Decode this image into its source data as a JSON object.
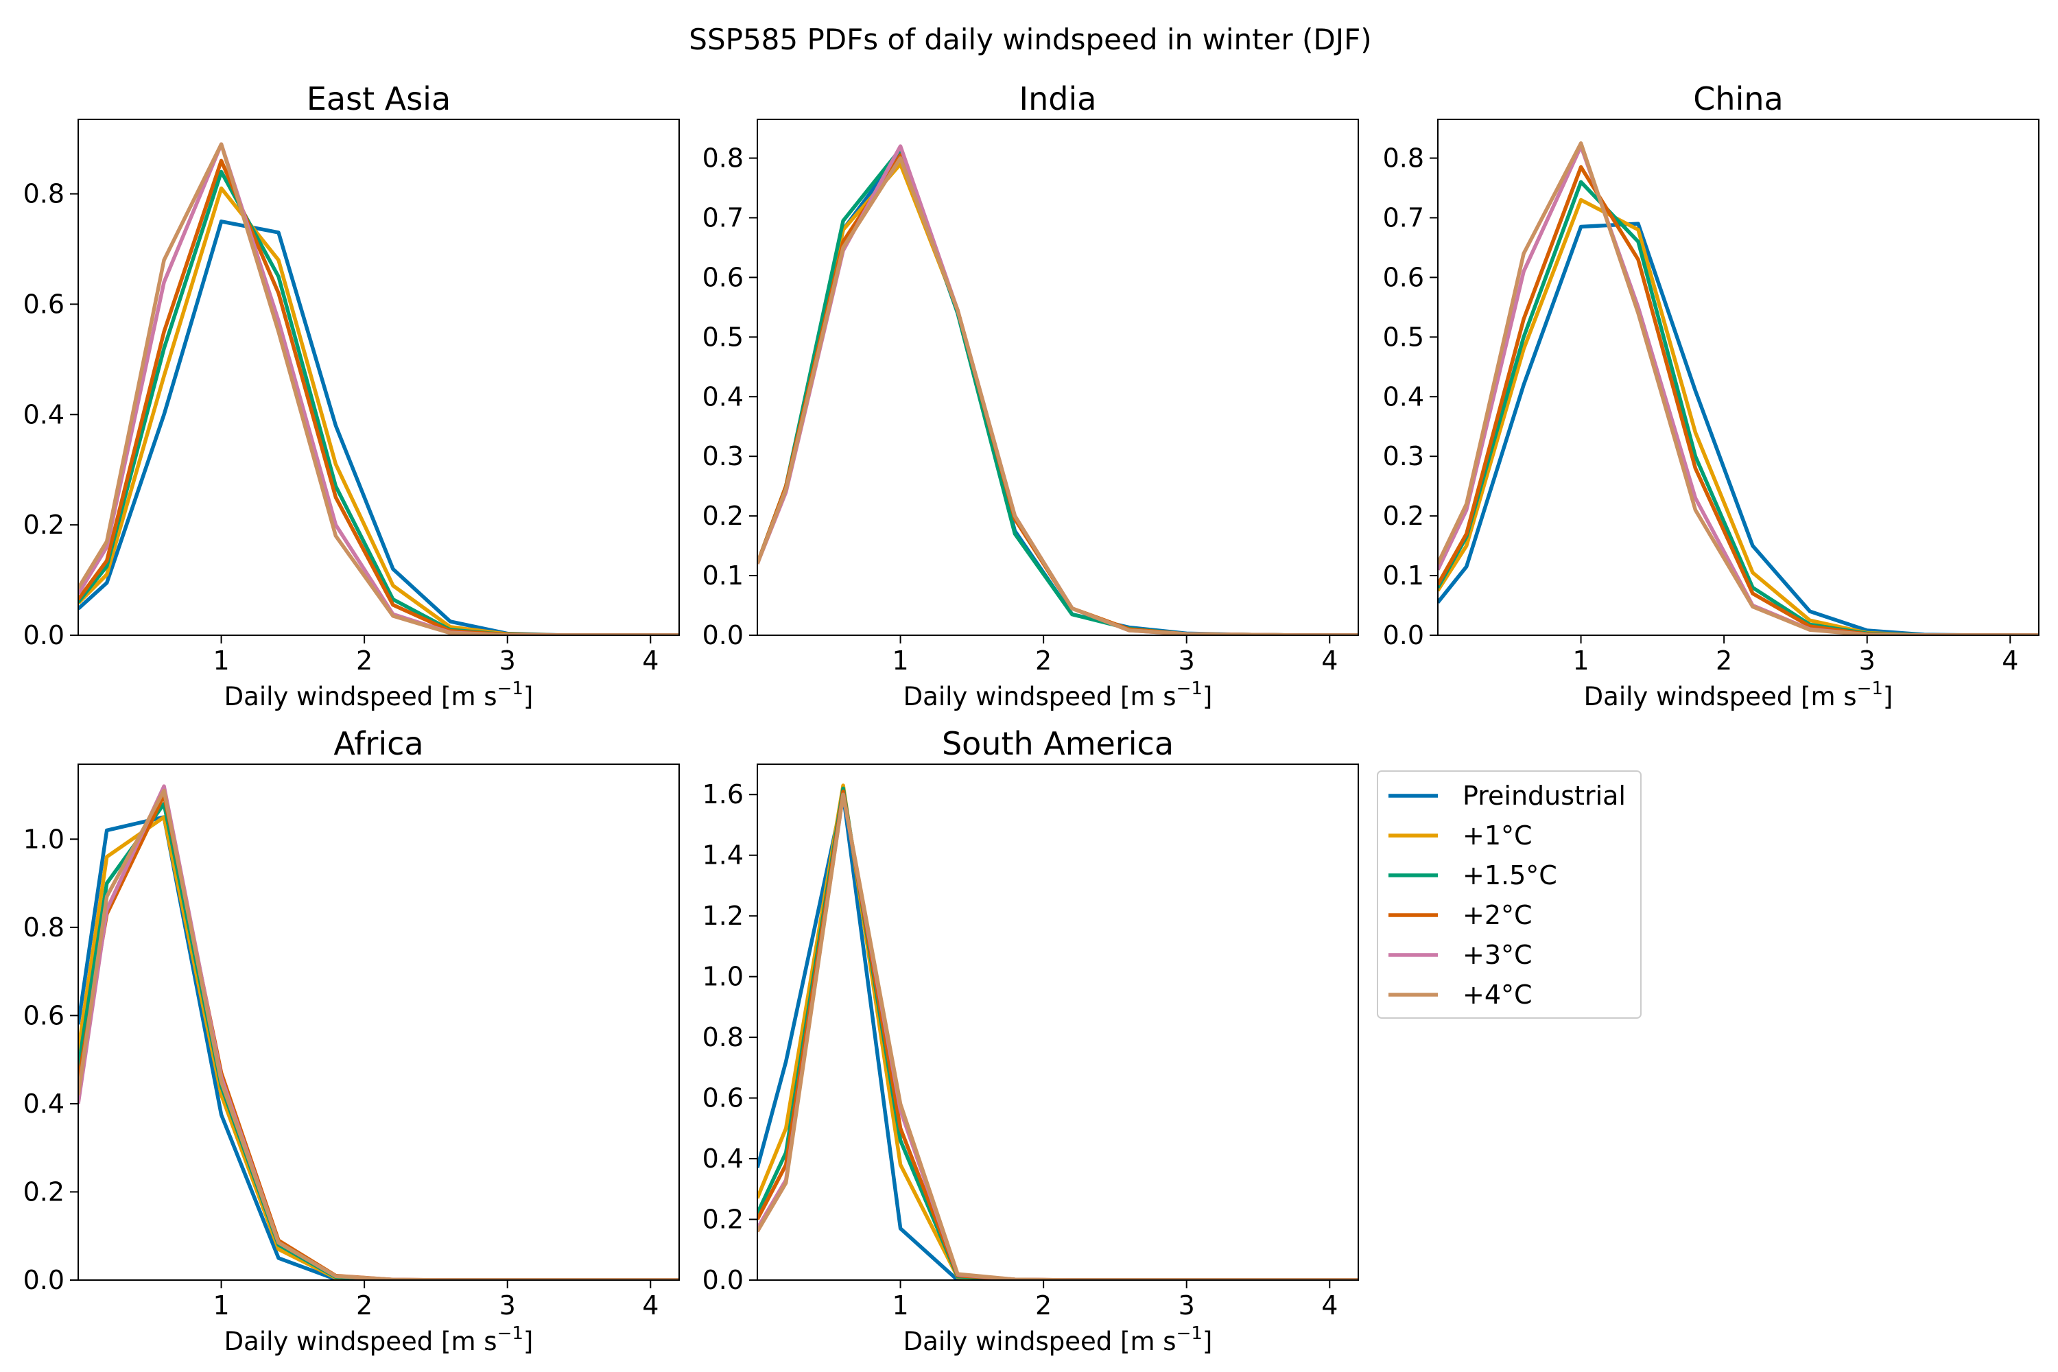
{
  "figure": {
    "suptitle": "SSP585 PDFs of daily windspeed in winter (DJF)"
  },
  "series_styles": [
    {
      "name": "Preindustrial",
      "color": "#0072B2"
    },
    {
      "name": "+1°C",
      "color": "#E69F00"
    },
    {
      "name": "+1.5°C",
      "color": "#009E73"
    },
    {
      "name": "+2°C",
      "color": "#D55E00"
    },
    {
      "name": "+3°C",
      "color": "#CC79A7"
    },
    {
      "name": "+4°C",
      "color": "#CA9161"
    }
  ],
  "legend": {
    "placement": "right of South America panel",
    "entries": [
      "Preindustrial",
      "+1°C",
      "+1.5°C",
      "+2°C",
      "+3°C",
      "+4°C"
    ]
  },
  "chart_data": [
    {
      "type": "line",
      "title": "East Asia",
      "xlabel": "Daily windspeed [m s",
      "xlabel_sup": "−1",
      "xlabel_end": "]",
      "ylabel": "",
      "xlim": [
        0,
        4.2
      ],
      "ylim": [
        0,
        0.935
      ],
      "xticks": [
        1,
        2,
        3,
        4
      ],
      "yticks": [
        0.0,
        0.2,
        0.4,
        0.6,
        0.8
      ],
      "ytick_labels": [
        "0.0",
        "0.2",
        "0.4",
        "0.6",
        "0.8"
      ],
      "x": [
        0.0,
        0.2,
        0.6,
        1.0,
        1.4,
        1.8,
        2.2,
        2.6,
        3.0,
        3.4,
        3.8,
        4.2
      ],
      "series": [
        {
          "name": "Preindustrial",
          "values": [
            0.048,
            0.095,
            0.4,
            0.75,
            0.73,
            0.38,
            0.12,
            0.025,
            0.003,
            0.0,
            0.0,
            0.0
          ]
        },
        {
          "name": "+1°C",
          "values": [
            0.058,
            0.11,
            0.47,
            0.81,
            0.68,
            0.31,
            0.09,
            0.015,
            0.002,
            0.0,
            0.0,
            0.0
          ]
        },
        {
          "name": "+1.5°C",
          "values": [
            0.06,
            0.125,
            0.52,
            0.84,
            0.65,
            0.27,
            0.065,
            0.01,
            0.001,
            0.0,
            0.0,
            0.0
          ]
        },
        {
          "name": "+2°C",
          "values": [
            0.065,
            0.135,
            0.55,
            0.86,
            0.62,
            0.25,
            0.055,
            0.008,
            0.001,
            0.0,
            0.0,
            0.0
          ]
        },
        {
          "name": "+3°C",
          "values": [
            0.075,
            0.16,
            0.64,
            0.89,
            0.57,
            0.2,
            0.038,
            0.005,
            0.0,
            0.0,
            0.0,
            0.0
          ]
        },
        {
          "name": "+4°C",
          "values": [
            0.085,
            0.17,
            0.68,
            0.89,
            0.55,
            0.18,
            0.035,
            0.004,
            0.0,
            0.0,
            0.0,
            0.0
          ]
        }
      ]
    },
    {
      "type": "line",
      "title": "India",
      "xlabel": "Daily windspeed [m s",
      "xlabel_sup": "−1",
      "xlabel_end": "]",
      "ylabel": "",
      "xlim": [
        0,
        4.2
      ],
      "ylim": [
        0,
        0.865
      ],
      "xticks": [
        1,
        2,
        3,
        4
      ],
      "yticks": [
        0.0,
        0.1,
        0.2,
        0.3,
        0.4,
        0.5,
        0.6,
        0.7,
        0.8
      ],
      "ytick_labels": [
        "0.0",
        "0.1",
        "0.2",
        "0.3",
        "0.4",
        "0.5",
        "0.6",
        "0.7",
        "0.8"
      ],
      "x": [
        0.0,
        0.2,
        0.6,
        1.0,
        1.4,
        1.8,
        2.2,
        2.6,
        3.0,
        3.4,
        3.8,
        4.2
      ],
      "series": [
        {
          "name": "Preindustrial",
          "values": [
            0.12,
            0.25,
            0.68,
            0.81,
            0.54,
            0.175,
            0.035,
            0.013,
            0.003,
            0.001,
            0.0,
            0.0
          ]
        },
        {
          "name": "+1°C",
          "values": [
            0.12,
            0.25,
            0.68,
            0.79,
            0.545,
            0.195,
            0.045,
            0.01,
            0.002,
            0.001,
            0.0,
            0.0
          ]
        },
        {
          "name": "+1.5°C",
          "values": [
            0.12,
            0.25,
            0.695,
            0.815,
            0.54,
            0.17,
            0.035,
            0.011,
            0.002,
            0.001,
            0.0,
            0.0
          ]
        },
        {
          "name": "+2°C",
          "values": [
            0.12,
            0.25,
            0.66,
            0.805,
            0.545,
            0.195,
            0.045,
            0.01,
            0.002,
            0.001,
            0.0,
            0.0
          ]
        },
        {
          "name": "+3°C",
          "values": [
            0.12,
            0.24,
            0.645,
            0.82,
            0.545,
            0.2,
            0.045,
            0.008,
            0.002,
            0.001,
            0.0,
            0.0
          ]
        },
        {
          "name": "+4°C",
          "values": [
            0.12,
            0.245,
            0.65,
            0.8,
            0.545,
            0.2,
            0.045,
            0.008,
            0.002,
            0.001,
            0.0,
            0.0
          ]
        }
      ]
    },
    {
      "type": "line",
      "title": "China",
      "xlabel": "Daily windspeed [m s",
      "xlabel_sup": "−1",
      "xlabel_end": "]",
      "ylabel": "",
      "xlim": [
        0,
        4.2
      ],
      "ylim": [
        0,
        0.865
      ],
      "xticks": [
        1,
        2,
        3,
        4
      ],
      "yticks": [
        0.0,
        0.1,
        0.2,
        0.3,
        0.4,
        0.5,
        0.6,
        0.7,
        0.8
      ],
      "ytick_labels": [
        "0.0",
        "0.1",
        "0.2",
        "0.3",
        "0.4",
        "0.5",
        "0.6",
        "0.7",
        "0.8"
      ],
      "x": [
        0.0,
        0.2,
        0.6,
        1.0,
        1.4,
        1.8,
        2.2,
        2.6,
        3.0,
        3.4,
        3.8,
        4.2
      ],
      "series": [
        {
          "name": "Preindustrial",
          "values": [
            0.055,
            0.115,
            0.42,
            0.685,
            0.69,
            0.41,
            0.15,
            0.04,
            0.008,
            0.001,
            0.0,
            0.0
          ]
        },
        {
          "name": "+1°C",
          "values": [
            0.075,
            0.15,
            0.48,
            0.73,
            0.68,
            0.34,
            0.105,
            0.025,
            0.004,
            0.0,
            0.0,
            0.0
          ]
        },
        {
          "name": "+1.5°C",
          "values": [
            0.08,
            0.165,
            0.5,
            0.76,
            0.66,
            0.3,
            0.08,
            0.018,
            0.003,
            0.0,
            0.0,
            0.0
          ]
        },
        {
          "name": "+2°C",
          "values": [
            0.085,
            0.17,
            0.53,
            0.785,
            0.63,
            0.28,
            0.07,
            0.015,
            0.002,
            0.0,
            0.0,
            0.0
          ]
        },
        {
          "name": "+3°C",
          "values": [
            0.11,
            0.21,
            0.61,
            0.82,
            0.55,
            0.23,
            0.05,
            0.01,
            0.001,
            0.0,
            0.0,
            0.0
          ]
        },
        {
          "name": "+4°C",
          "values": [
            0.12,
            0.22,
            0.64,
            0.825,
            0.54,
            0.21,
            0.048,
            0.009,
            0.001,
            0.0,
            0.0,
            0.0
          ]
        }
      ]
    },
    {
      "type": "line",
      "title": "Africa",
      "xlabel": "Daily windspeed [m s",
      "xlabel_sup": "−1",
      "xlabel_end": "]",
      "ylabel": "",
      "xlim": [
        0,
        4.2
      ],
      "ylim": [
        0,
        1.17
      ],
      "xticks": [
        1,
        2,
        3,
        4
      ],
      "yticks": [
        0.0,
        0.2,
        0.4,
        0.6,
        0.8,
        1.0
      ],
      "ytick_labels": [
        "0.0",
        "0.2",
        "0.4",
        "0.6",
        "0.8",
        "1.0"
      ],
      "x": [
        0.0,
        0.2,
        0.6,
        1.0,
        1.4,
        1.8,
        2.2,
        2.6,
        3.0,
        3.4,
        3.8,
        4.2
      ],
      "series": [
        {
          "name": "Preindustrial",
          "values": [
            0.58,
            1.02,
            1.05,
            0.375,
            0.05,
            0.002,
            0.0,
            0.0,
            0.0,
            0.0,
            0.0,
            0.0
          ]
        },
        {
          "name": "+1°C",
          "values": [
            0.52,
            0.96,
            1.05,
            0.42,
            0.07,
            0.005,
            0.0,
            0.0,
            0.0,
            0.0,
            0.0,
            0.0
          ]
        },
        {
          "name": "+1.5°C",
          "values": [
            0.48,
            0.9,
            1.08,
            0.44,
            0.08,
            0.007,
            0.0,
            0.0,
            0.0,
            0.0,
            0.0,
            0.0
          ]
        },
        {
          "name": "+2°C",
          "values": [
            0.45,
            0.83,
            1.1,
            0.47,
            0.09,
            0.01,
            0.001,
            0.0,
            0.0,
            0.0,
            0.0,
            0.0
          ]
        },
        {
          "name": "+3°C",
          "values": [
            0.4,
            0.84,
            1.12,
            0.46,
            0.085,
            0.009,
            0.001,
            0.0,
            0.0,
            0.0,
            0.0,
            0.0
          ]
        },
        {
          "name": "+4°C",
          "values": [
            0.42,
            0.87,
            1.11,
            0.45,
            0.085,
            0.009,
            0.001,
            0.0,
            0.0,
            0.0,
            0.0,
            0.0
          ]
        }
      ]
    },
    {
      "type": "line",
      "title": "South America",
      "xlabel": "Daily windspeed [m s",
      "xlabel_sup": "−1",
      "xlabel_end": "]",
      "ylabel": "",
      "xlim": [
        0,
        4.2
      ],
      "ylim": [
        0,
        1.7
      ],
      "xticks": [
        1,
        2,
        3,
        4
      ],
      "yticks": [
        0.0,
        0.2,
        0.4,
        0.6,
        0.8,
        1.0,
        1.2,
        1.4,
        1.6
      ],
      "ytick_labels": [
        "0.0",
        "0.2",
        "0.4",
        "0.6",
        "0.8",
        "1.0",
        "1.2",
        "1.4",
        "1.6"
      ],
      "x": [
        0.0,
        0.2,
        0.6,
        1.0,
        1.4,
        1.8,
        2.2,
        2.6,
        3.0,
        3.4,
        3.8,
        4.2
      ],
      "series": [
        {
          "name": "Preindustrial",
          "values": [
            0.37,
            0.72,
            1.6,
            0.17,
            0.0,
            0.0,
            0.0,
            0.0,
            0.0,
            0.0,
            0.0,
            0.0
          ]
        },
        {
          "name": "+1°C",
          "values": [
            0.27,
            0.5,
            1.63,
            0.38,
            0.01,
            0.0,
            0.0,
            0.0,
            0.0,
            0.0,
            0.0,
            0.0
          ]
        },
        {
          "name": "+1.5°C",
          "values": [
            0.22,
            0.42,
            1.62,
            0.46,
            0.012,
            0.0,
            0.0,
            0.0,
            0.0,
            0.0,
            0.0,
            0.0
          ]
        },
        {
          "name": "+2°C",
          "values": [
            0.2,
            0.38,
            1.61,
            0.5,
            0.015,
            0.002,
            0.0,
            0.0,
            0.0,
            0.0,
            0.0,
            0.0
          ]
        },
        {
          "name": "+3°C",
          "values": [
            0.17,
            0.33,
            1.6,
            0.56,
            0.018,
            0.002,
            0.0,
            0.0,
            0.0,
            0.0,
            0.0,
            0.0
          ]
        },
        {
          "name": "+4°C",
          "values": [
            0.16,
            0.32,
            1.6,
            0.58,
            0.02,
            0.002,
            0.0,
            0.0,
            0.0,
            0.0,
            0.0,
            0.0
          ]
        }
      ]
    }
  ]
}
